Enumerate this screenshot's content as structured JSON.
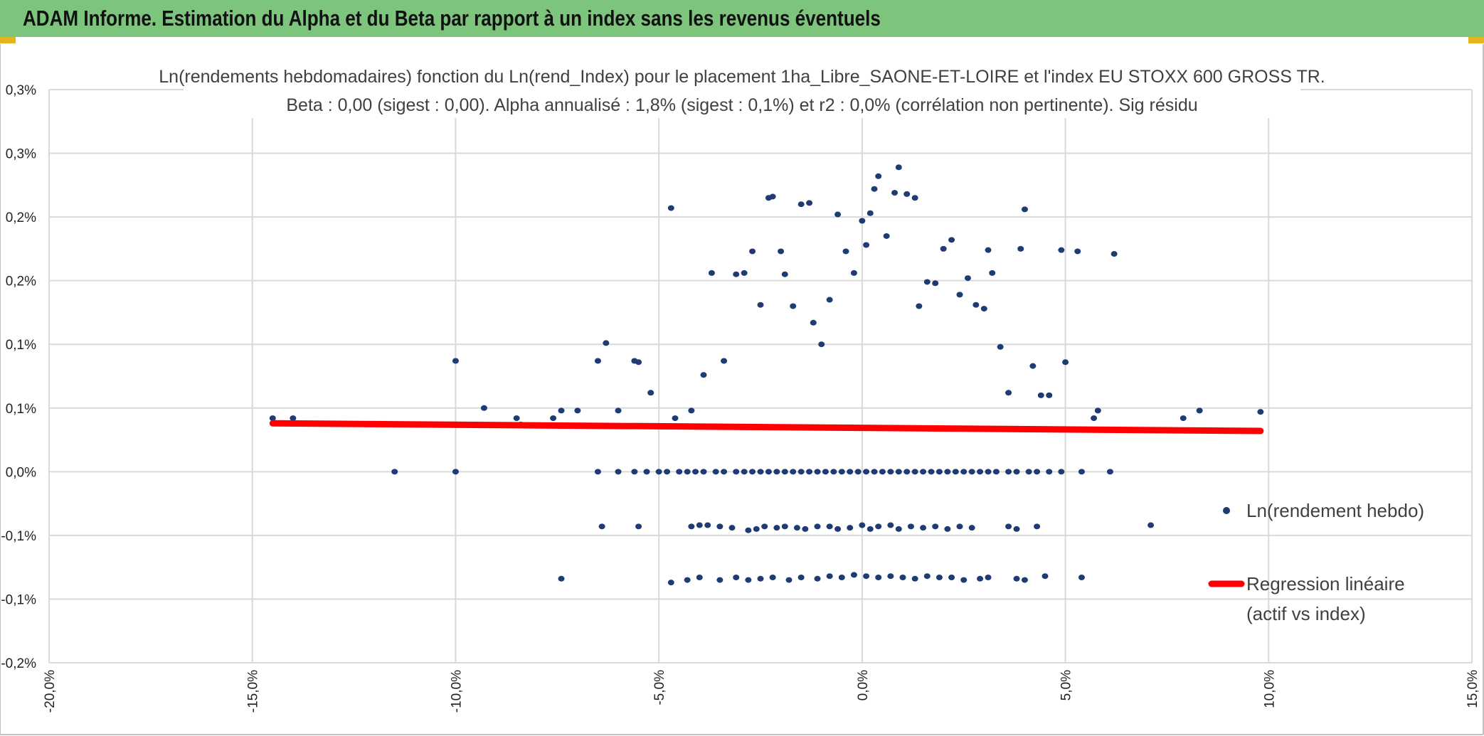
{
  "header": {
    "title": "ADAM Informe. Estimation du Alpha et du Beta par rapport à un index sans les revenus éventuels"
  },
  "colors": {
    "header_bg": "#7dc47d",
    "points": "#1f3b73",
    "regression": "#ff0000",
    "grid": "#d9d9d9",
    "accent": "#e5b520"
  },
  "chart_data": {
    "type": "scatter",
    "title_line1": "Ln(rendements hebdomadaires) fonction du Ln(rend_Index) pour le placement 1ha_Libre_SAONE-ET-LOIRE et l'index EU STOXX 600 GROSS TR.",
    "title_line2": "Beta : 0,00 (sigest : 0,00). Alpha annualisé : 1,8% (sigest : 0,1%) et r2 : 0,0% (corrélation non pertinente). Sig résidu",
    "xlim": [
      -0.2,
      0.15
    ],
    "ylim": [
      -0.0015,
      0.003
    ],
    "x_ticks": [
      {
        "value": -0.2,
        "label": "-20,0%"
      },
      {
        "value": -0.15,
        "label": "-15,0%"
      },
      {
        "value": -0.1,
        "label": "-10,0%"
      },
      {
        "value": -0.05,
        "label": "-5,0%"
      },
      {
        "value": 0.0,
        "label": "0,0%"
      },
      {
        "value": 0.05,
        "label": "5,0%"
      },
      {
        "value": 0.1,
        "label": "10,0%"
      },
      {
        "value": 0.15,
        "label": "15,0%"
      }
    ],
    "y_ticks": [
      {
        "value": 0.003,
        "label": "0,3%"
      },
      {
        "value": 0.0025,
        "label": "0,3%"
      },
      {
        "value": 0.002,
        "label": "0,2%"
      },
      {
        "value": 0.0015,
        "label": "0,2%"
      },
      {
        "value": 0.001,
        "label": "0,1%"
      },
      {
        "value": 0.0005,
        "label": "0,1%"
      },
      {
        "value": 0.0,
        "label": "0,0%"
      },
      {
        "value": -0.0005,
        "label": "-0,1%"
      },
      {
        "value": -0.001,
        "label": "-0,1%"
      },
      {
        "value": -0.0015,
        "label": "-0,2%"
      }
    ],
    "grid": true,
    "legend_position": "right",
    "series": [
      {
        "name": "Ln(rendement hebdo)",
        "kind": "scatter",
        "color": "#1f3b73",
        "points": [
          [
            -0.145,
            0.00042
          ],
          [
            -0.14,
            0.00042
          ],
          [
            -0.1,
            0.00087
          ],
          [
            -0.093,
            0.0005
          ],
          [
            -0.085,
            0.00042
          ],
          [
            -0.084,
            0.00037
          ],
          [
            -0.076,
            0.00042
          ],
          [
            -0.074,
            0.00048
          ],
          [
            -0.07,
            0.00048
          ],
          [
            -0.065,
            0.00087
          ],
          [
            -0.063,
            0.00101
          ],
          [
            -0.06,
            0.00048
          ],
          [
            -0.056,
            0.00087
          ],
          [
            -0.055,
            0.00086
          ],
          [
            -0.052,
            0.00062
          ],
          [
            -0.047,
            0.00207
          ],
          [
            -0.046,
            0.00042
          ],
          [
            -0.042,
            0.00048
          ],
          [
            -0.039,
            0.00076
          ],
          [
            -0.037,
            0.00156
          ],
          [
            -0.034,
            0.00087
          ],
          [
            -0.031,
            0.00155
          ],
          [
            -0.029,
            0.00156
          ],
          [
            -0.027,
            0.00173
          ],
          [
            -0.025,
            0.00131
          ],
          [
            -0.023,
            0.00215
          ],
          [
            -0.022,
            0.00216
          ],
          [
            -0.02,
            0.00173
          ],
          [
            -0.019,
            0.00155
          ],
          [
            -0.017,
            0.0013
          ],
          [
            -0.015,
            0.0021
          ],
          [
            -0.013,
            0.00211
          ],
          [
            -0.012,
            0.00117
          ],
          [
            -0.01,
            0.001
          ],
          [
            -0.008,
            0.00135
          ],
          [
            -0.006,
            0.00202
          ],
          [
            -0.004,
            0.00173
          ],
          [
            -0.002,
            0.00156
          ],
          [
            0.0,
            0.00197
          ],
          [
            0.001,
            0.00178
          ],
          [
            0.002,
            0.00203
          ],
          [
            0.003,
            0.00222
          ],
          [
            0.004,
            0.00232
          ],
          [
            0.006,
            0.00185
          ],
          [
            0.008,
            0.00219
          ],
          [
            0.009,
            0.00239
          ],
          [
            0.011,
            0.00218
          ],
          [
            0.013,
            0.00215
          ],
          [
            0.014,
            0.0013
          ],
          [
            0.016,
            0.00149
          ],
          [
            0.018,
            0.00148
          ],
          [
            0.02,
            0.00175
          ],
          [
            0.022,
            0.00182
          ],
          [
            0.024,
            0.00139
          ],
          [
            0.026,
            0.00152
          ],
          [
            0.028,
            0.00131
          ],
          [
            0.03,
            0.00128
          ],
          [
            0.031,
            0.00174
          ],
          [
            0.032,
            0.00156
          ],
          [
            0.034,
            0.00098
          ],
          [
            0.036,
            0.00062
          ],
          [
            0.039,
            0.00175
          ],
          [
            0.04,
            0.00206
          ],
          [
            0.042,
            0.00083
          ],
          [
            0.044,
            0.0006
          ],
          [
            0.046,
            0.0006
          ],
          [
            0.049,
            0.00174
          ],
          [
            0.05,
            0.00086
          ],
          [
            0.053,
            0.00173
          ],
          [
            0.057,
            0.00042
          ],
          [
            0.058,
            0.00048
          ],
          [
            0.062,
            0.00171
          ],
          [
            0.079,
            0.00042
          ],
          [
            0.083,
            0.00048
          ],
          [
            0.098,
            0.00047
          ],
          [
            -0.115,
            0.0
          ],
          [
            -0.1,
            0.0
          ],
          [
            -0.065,
            0.0
          ],
          [
            -0.06,
            0.0
          ],
          [
            -0.056,
            0.0
          ],
          [
            -0.053,
            0.0
          ],
          [
            -0.05,
            0.0
          ],
          [
            -0.048,
            0.0
          ],
          [
            -0.045,
            0.0
          ],
          [
            -0.043,
            0.0
          ],
          [
            -0.041,
            0.0
          ],
          [
            -0.039,
            0.0
          ],
          [
            -0.036,
            0.0
          ],
          [
            -0.034,
            0.0
          ],
          [
            -0.031,
            0.0
          ],
          [
            -0.029,
            0.0
          ],
          [
            -0.027,
            0.0
          ],
          [
            -0.025,
            0.0
          ],
          [
            -0.023,
            0.0
          ],
          [
            -0.021,
            0.0
          ],
          [
            -0.019,
            0.0
          ],
          [
            -0.017,
            0.0
          ],
          [
            -0.015,
            0.0
          ],
          [
            -0.013,
            0.0
          ],
          [
            -0.011,
            0.0
          ],
          [
            -0.009,
            0.0
          ],
          [
            -0.007,
            0.0
          ],
          [
            -0.005,
            0.0
          ],
          [
            -0.003,
            0.0
          ],
          [
            -0.001,
            0.0
          ],
          [
            0.001,
            0.0
          ],
          [
            0.003,
            0.0
          ],
          [
            0.005,
            0.0
          ],
          [
            0.007,
            0.0
          ],
          [
            0.009,
            0.0
          ],
          [
            0.011,
            0.0
          ],
          [
            0.013,
            0.0
          ],
          [
            0.015,
            0.0
          ],
          [
            0.017,
            0.0
          ],
          [
            0.019,
            0.0
          ],
          [
            0.021,
            0.0
          ],
          [
            0.023,
            0.0
          ],
          [
            0.025,
            0.0
          ],
          [
            0.027,
            0.0
          ],
          [
            0.029,
            0.0
          ],
          [
            0.031,
            0.0
          ],
          [
            0.033,
            0.0
          ],
          [
            0.036,
            0.0
          ],
          [
            0.038,
            0.0
          ],
          [
            0.041,
            0.0
          ],
          [
            0.043,
            0.0
          ],
          [
            0.046,
            0.0
          ],
          [
            0.049,
            0.0
          ],
          [
            0.054,
            0.0
          ],
          [
            0.061,
            0.0
          ],
          [
            -0.064,
            -0.00043
          ],
          [
            -0.055,
            -0.00043
          ],
          [
            -0.042,
            -0.00043
          ],
          [
            -0.04,
            -0.00042
          ],
          [
            -0.038,
            -0.00042
          ],
          [
            -0.035,
            -0.00043
          ],
          [
            -0.032,
            -0.00044
          ],
          [
            -0.028,
            -0.00046
          ],
          [
            -0.026,
            -0.00045
          ],
          [
            -0.024,
            -0.00043
          ],
          [
            -0.021,
            -0.00044
          ],
          [
            -0.019,
            -0.00043
          ],
          [
            -0.016,
            -0.00044
          ],
          [
            -0.014,
            -0.00045
          ],
          [
            -0.011,
            -0.00043
          ],
          [
            -0.008,
            -0.00043
          ],
          [
            -0.006,
            -0.00045
          ],
          [
            -0.003,
            -0.00044
          ],
          [
            0.0,
            -0.00042
          ],
          [
            0.002,
            -0.00045
          ],
          [
            0.004,
            -0.00043
          ],
          [
            0.007,
            -0.00042
          ],
          [
            0.009,
            -0.00045
          ],
          [
            0.012,
            -0.00043
          ],
          [
            0.015,
            -0.00044
          ],
          [
            0.018,
            -0.00043
          ],
          [
            0.021,
            -0.00045
          ],
          [
            0.024,
            -0.00043
          ],
          [
            0.027,
            -0.00044
          ],
          [
            0.036,
            -0.00043
          ],
          [
            0.038,
            -0.00045
          ],
          [
            0.043,
            -0.00043
          ],
          [
            0.071,
            -0.00042
          ],
          [
            -0.074,
            -0.00084
          ],
          [
            -0.047,
            -0.00087
          ],
          [
            -0.043,
            -0.00085
          ],
          [
            -0.04,
            -0.00083
          ],
          [
            -0.035,
            -0.00085
          ],
          [
            -0.031,
            -0.00083
          ],
          [
            -0.028,
            -0.00085
          ],
          [
            -0.025,
            -0.00084
          ],
          [
            -0.022,
            -0.00083
          ],
          [
            -0.018,
            -0.00085
          ],
          [
            -0.015,
            -0.00083
          ],
          [
            -0.011,
            -0.00084
          ],
          [
            -0.008,
            -0.00082
          ],
          [
            -0.005,
            -0.00083
          ],
          [
            -0.002,
            -0.00081
          ],
          [
            0.001,
            -0.00082
          ],
          [
            0.004,
            -0.00083
          ],
          [
            0.007,
            -0.00082
          ],
          [
            0.01,
            -0.00083
          ],
          [
            0.013,
            -0.00084
          ],
          [
            0.016,
            -0.00082
          ],
          [
            0.019,
            -0.00083
          ],
          [
            0.022,
            -0.00083
          ],
          [
            0.025,
            -0.00085
          ],
          [
            0.029,
            -0.00084
          ],
          [
            0.031,
            -0.00083
          ],
          [
            0.038,
            -0.00084
          ],
          [
            0.04,
            -0.00085
          ],
          [
            0.045,
            -0.00082
          ],
          [
            0.054,
            -0.00083
          ]
        ]
      },
      {
        "name": "Regression linéaire",
        "name_line2": "(actif vs index)",
        "kind": "line",
        "color": "#ff0000",
        "points": [
          [
            -0.145,
            0.00038
          ],
          [
            0.098,
            0.00032
          ]
        ]
      }
    ]
  }
}
